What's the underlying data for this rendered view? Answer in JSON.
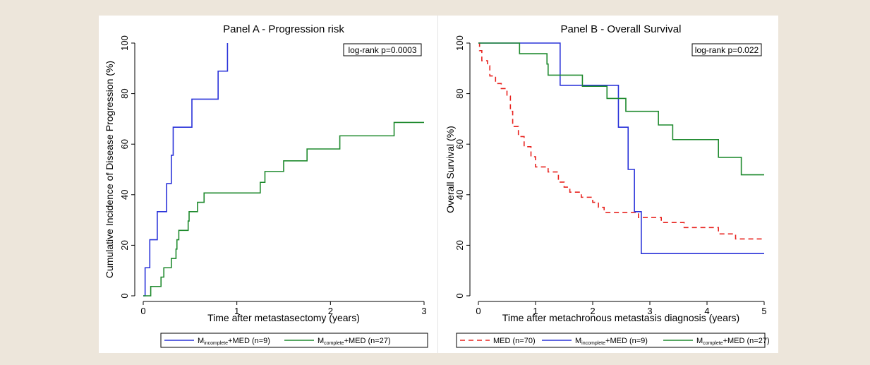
{
  "colors": {
    "page_bg": "#ede6db",
    "blue": "#2a33d9",
    "green": "#1f8a2e",
    "red": "#e8231f",
    "axis": "#000000"
  },
  "chart_data": [
    {
      "type": "line",
      "title": "Panel A - Progression risk",
      "xlabel": "Time after metastasectomy (years)",
      "ylabel": "Cumulative Incidence of Disease Progression (%)",
      "xlim": [
        0,
        3
      ],
      "ylim": [
        0,
        100
      ],
      "xticks": [
        "0",
        "1",
        "2",
        "3"
      ],
      "yticks": [
        "0",
        "20",
        "40",
        "60",
        "80",
        "100"
      ],
      "annotation": "log-rank p=0.0003",
      "legend_position": "bottom",
      "series": [
        {
          "legend_main": "M",
          "legend_sub": "incomplete",
          "legend_rest": "+MED (n=9)",
          "color": "#2a33d9",
          "dash": false,
          "steps": [
            [
              0,
              0
            ],
            [
              0.02,
              11.1
            ],
            [
              0.07,
              22.2
            ],
            [
              0.15,
              33.3
            ],
            [
              0.25,
              44.4
            ],
            [
              0.3,
              55.6
            ],
            [
              0.32,
              66.7
            ],
            [
              0.52,
              77.8
            ],
            [
              0.8,
              88.9
            ],
            [
              0.9,
              100
            ]
          ],
          "end_x": 0.9
        },
        {
          "legend_main": "M",
          "legend_sub": "complete",
          "legend_rest": "+MED (n=27)",
          "color": "#1f8a2e",
          "dash": false,
          "steps": [
            [
              0,
              0
            ],
            [
              0.08,
              3.7
            ],
            [
              0.19,
              7.4
            ],
            [
              0.22,
              11.1
            ],
            [
              0.3,
              14.8
            ],
            [
              0.35,
              18.5
            ],
            [
              0.36,
              22.2
            ],
            [
              0.38,
              25.9
            ],
            [
              0.48,
              29.6
            ],
            [
              0.49,
              33.3
            ],
            [
              0.58,
              37.0
            ],
            [
              0.65,
              40.7
            ],
            [
              1.25,
              44.9
            ],
            [
              1.3,
              49.2
            ],
            [
              1.5,
              53.4
            ],
            [
              1.75,
              58.1
            ],
            [
              2.1,
              63.3
            ],
            [
              2.68,
              68.6
            ]
          ],
          "end_x": 3.0
        }
      ]
    },
    {
      "type": "line",
      "title": "Panel B - Overall Survival",
      "xlabel": "Time after metachronous metastasis diagnosis (years)",
      "ylabel": "Overall Survival (%)",
      "xlim": [
        0,
        5
      ],
      "ylim": [
        0,
        100
      ],
      "xticks": [
        "0",
        "1",
        "2",
        "3",
        "4",
        "5"
      ],
      "yticks": [
        "0",
        "20",
        "40",
        "60",
        "80",
        "100"
      ],
      "annotation": "log-rank p=0.022",
      "legend_position": "bottom",
      "series": [
        {
          "legend_main": "MED (n=70)",
          "legend_sub": "",
          "legend_rest": "",
          "color": "#e8231f",
          "dash": true,
          "steps": [
            [
              0,
              100
            ],
            [
              0.02,
              97
            ],
            [
              0.06,
              93
            ],
            [
              0.16,
              91
            ],
            [
              0.2,
              87
            ],
            [
              0.3,
              84
            ],
            [
              0.4,
              82
            ],
            [
              0.5,
              79
            ],
            [
              0.56,
              73
            ],
            [
              0.6,
              67
            ],
            [
              0.7,
              63
            ],
            [
              0.8,
              59
            ],
            [
              0.92,
              55
            ],
            [
              1.0,
              51
            ],
            [
              1.22,
              49
            ],
            [
              1.4,
              45
            ],
            [
              1.5,
              43
            ],
            [
              1.6,
              41
            ],
            [
              1.8,
              39
            ],
            [
              2.0,
              37
            ],
            [
              2.1,
              35
            ],
            [
              2.2,
              33
            ],
            [
              2.8,
              31
            ],
            [
              3.2,
              29
            ],
            [
              3.6,
              27
            ],
            [
              4.2,
              24.5
            ],
            [
              4.5,
              22.5
            ]
          ],
          "end_x": 5.0
        },
        {
          "legend_main": "M",
          "legend_sub": "incomplete",
          "legend_rest": "+MED (n=9)",
          "color": "#2a33d9",
          "dash": false,
          "steps": [
            [
              0,
              100
            ],
            [
              1.43,
              83.3
            ],
            [
              2.45,
              66.7
            ],
            [
              2.62,
              50.0
            ],
            [
              2.73,
              33.3
            ],
            [
              2.85,
              16.7
            ]
          ],
          "end_x": 5.0
        },
        {
          "legend_main": "M",
          "legend_sub": "complete",
          "legend_rest": "+MED (n=27)",
          "color": "#1f8a2e",
          "dash": false,
          "steps": [
            [
              0,
              100
            ],
            [
              0.72,
              95.8
            ],
            [
              1.2,
              91.7
            ],
            [
              1.22,
              87.3
            ],
            [
              1.82,
              82.9
            ],
            [
              2.25,
              78.1
            ],
            [
              2.58,
              73.0
            ],
            [
              3.15,
              67.6
            ],
            [
              3.4,
              61.8
            ],
            [
              4.2,
              54.8
            ],
            [
              4.6,
              47.9
            ]
          ],
          "end_x": 5.0
        }
      ]
    }
  ]
}
